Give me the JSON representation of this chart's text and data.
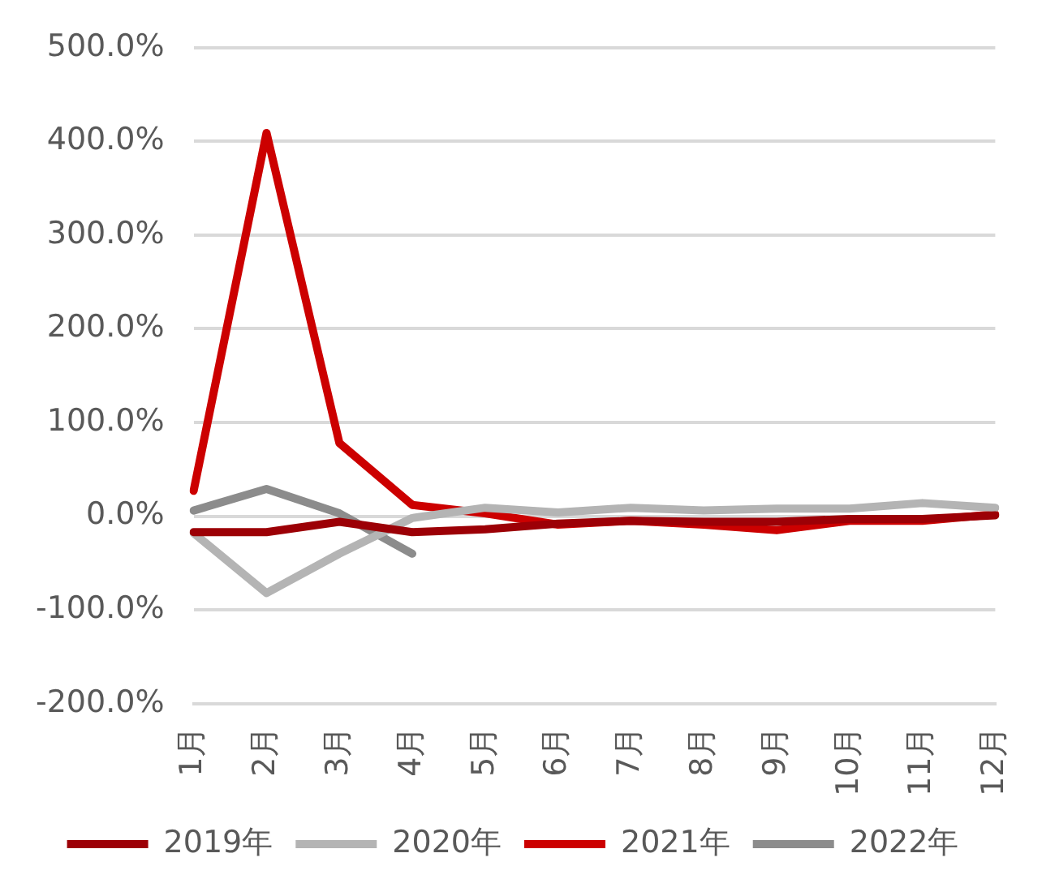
{
  "chart_data": {
    "type": "line",
    "categories": [
      "1月",
      "2月",
      "3月",
      "4月",
      "5月",
      "6月",
      "7月",
      "8月",
      "9月",
      "10月",
      "11月",
      "12月"
    ],
    "series": [
      {
        "name": "2019年",
        "color": "#9c0006",
        "values": [
          -17,
          -17,
          -6,
          -17,
          -14,
          -8,
          -5,
          -6,
          -6,
          -3,
          -3,
          1
        ]
      },
      {
        "name": "2020年",
        "color": "#b4b4b4",
        "values": [
          -18,
          -82,
          -40,
          -2,
          9,
          4,
          9,
          6,
          8,
          8,
          14,
          9
        ]
      },
      {
        "name": "2021年",
        "color": "#cc0000",
        "values": [
          27,
          409,
          78,
          12,
          3,
          -9,
          -5,
          -9,
          -15,
          -5,
          -5,
          2
        ]
      },
      {
        "name": "2022年",
        "color": "#8c8c8c",
        "values": [
          6,
          29,
          3,
          -40,
          null,
          null,
          null,
          null,
          null,
          null,
          null,
          null
        ]
      }
    ],
    "ylim": [
      -200,
      500
    ],
    "yticks": [
      {
        "value": -200,
        "label": "-200.0%"
      },
      {
        "value": -100,
        "label": "-100.0%"
      },
      {
        "value": 0,
        "label": "0.0%"
      },
      {
        "value": 100,
        "label": "100.0%"
      },
      {
        "value": 200,
        "label": "200.0%"
      },
      {
        "value": 300,
        "label": "300.0%"
      },
      {
        "value": 400,
        "label": "400.0%"
      },
      {
        "value": 500,
        "label": "500.0%"
      }
    ],
    "grid": "y",
    "legend": "bottom",
    "marker": "none",
    "line_style": "solid"
  }
}
